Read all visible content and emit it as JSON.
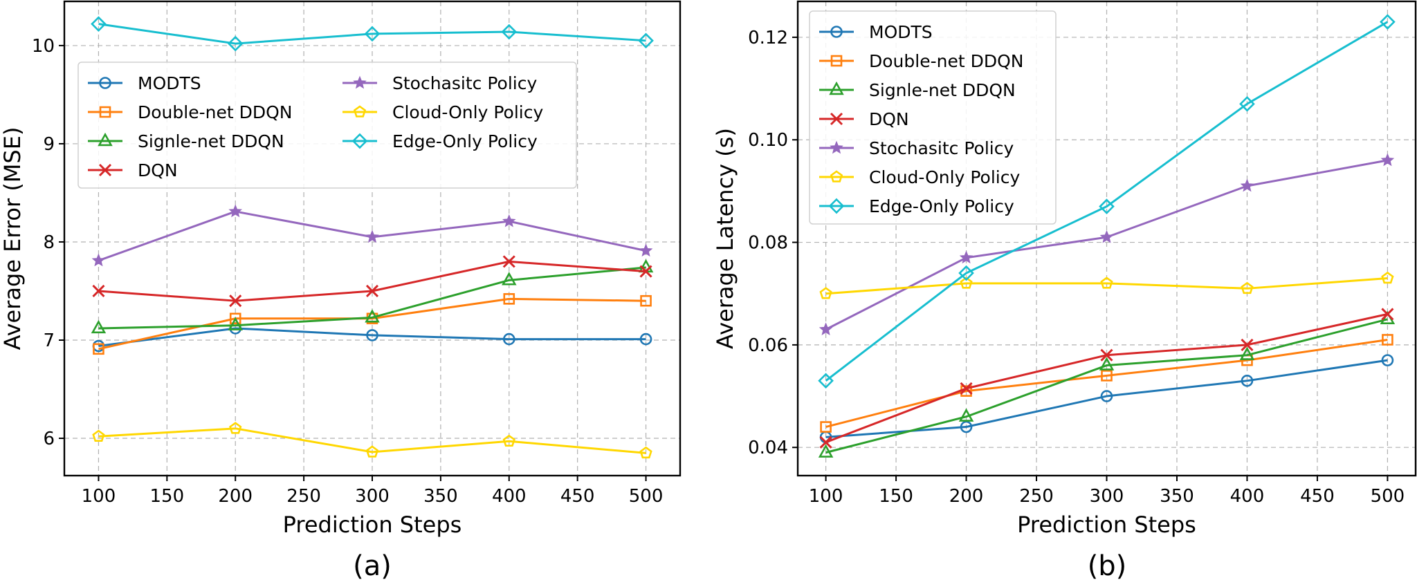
{
  "chart_data": [
    {
      "type": "line",
      "caption": "(a)",
      "title": "",
      "xlabel": "Prediction Steps",
      "ylabel": "Average Error (MSE)",
      "x": [
        100,
        200,
        300,
        400,
        500
      ],
      "xlim": [
        75,
        525
      ],
      "ylim": [
        5.62,
        10.45
      ],
      "xticks": [
        100,
        150,
        200,
        250,
        300,
        350,
        400,
        450,
        500
      ],
      "yticks": [
        6,
        7,
        8,
        9,
        10
      ],
      "ytick_decimals": 0,
      "grid": true,
      "legend_placement": "upper-left, two columns",
      "series": [
        {
          "name": "MODTS",
          "color": "#1f77b4",
          "marker": "circle",
          "values": [
            6.94,
            7.12,
            7.05,
            7.01,
            7.01
          ]
        },
        {
          "name": "Double-net DDQN",
          "color": "#ff7f0e",
          "marker": "square",
          "values": [
            6.91,
            7.22,
            7.22,
            7.42,
            7.4
          ]
        },
        {
          "name": "Signle-net DDQN",
          "color": "#2ca02c",
          "marker": "triangle",
          "values": [
            7.12,
            7.15,
            7.23,
            7.61,
            7.74
          ]
        },
        {
          "name": "DQN",
          "color": "#d62728",
          "marker": "x",
          "values": [
            7.5,
            7.4,
            7.5,
            7.8,
            7.7
          ]
        },
        {
          "name": "Stochasitc Policy",
          "color": "#9467bd",
          "marker": "star",
          "values": [
            7.81,
            8.31,
            8.05,
            8.21,
            7.91
          ]
        },
        {
          "name": "Cloud-Only Policy",
          "color": "#ffd700",
          "marker": "pentagon",
          "values": [
            6.02,
            6.1,
            5.86,
            5.97,
            5.85
          ]
        },
        {
          "name": "Edge-Only Policy",
          "color": "#17becf",
          "marker": "diamond",
          "values": [
            10.22,
            10.02,
            10.12,
            10.14,
            10.05
          ]
        }
      ]
    },
    {
      "type": "line",
      "caption": "(b)",
      "title": "",
      "xlabel": "Prediction Steps",
      "ylabel": "Average Latency (s)",
      "x": [
        100,
        200,
        300,
        400,
        500
      ],
      "xlim": [
        80,
        520
      ],
      "ylim": [
        0.0345,
        0.127
      ],
      "xticks": [
        100,
        150,
        200,
        250,
        300,
        350,
        400,
        450,
        500
      ],
      "yticks": [
        0.04,
        0.06,
        0.08,
        0.1,
        0.12
      ],
      "ytick_decimals": 2,
      "grid": true,
      "legend_placement": "upper-left, one column",
      "series": [
        {
          "name": "MODTS",
          "color": "#1f77b4",
          "marker": "circle",
          "values": [
            0.042,
            0.044,
            0.05,
            0.053,
            0.057
          ]
        },
        {
          "name": "Double-net DDQN",
          "color": "#ff7f0e",
          "marker": "square",
          "values": [
            0.044,
            0.051,
            0.054,
            0.057,
            0.061
          ]
        },
        {
          "name": "Signle-net DDQN",
          "color": "#2ca02c",
          "marker": "triangle",
          "values": [
            0.039,
            0.046,
            0.056,
            0.058,
            0.065
          ]
        },
        {
          "name": "DQN",
          "color": "#d62728",
          "marker": "x",
          "values": [
            0.041,
            0.0515,
            0.058,
            0.06,
            0.066
          ]
        },
        {
          "name": "Stochasitc Policy",
          "color": "#9467bd",
          "marker": "star",
          "values": [
            0.063,
            0.077,
            0.081,
            0.091,
            0.096
          ]
        },
        {
          "name": "Cloud-Only Policy",
          "color": "#ffd700",
          "marker": "pentagon",
          "values": [
            0.07,
            0.072,
            0.072,
            0.071,
            0.073
          ]
        },
        {
          "name": "Edge-Only Policy",
          "color": "#17becf",
          "marker": "diamond",
          "values": [
            0.053,
            0.074,
            0.087,
            0.107,
            0.123
          ]
        }
      ]
    }
  ]
}
